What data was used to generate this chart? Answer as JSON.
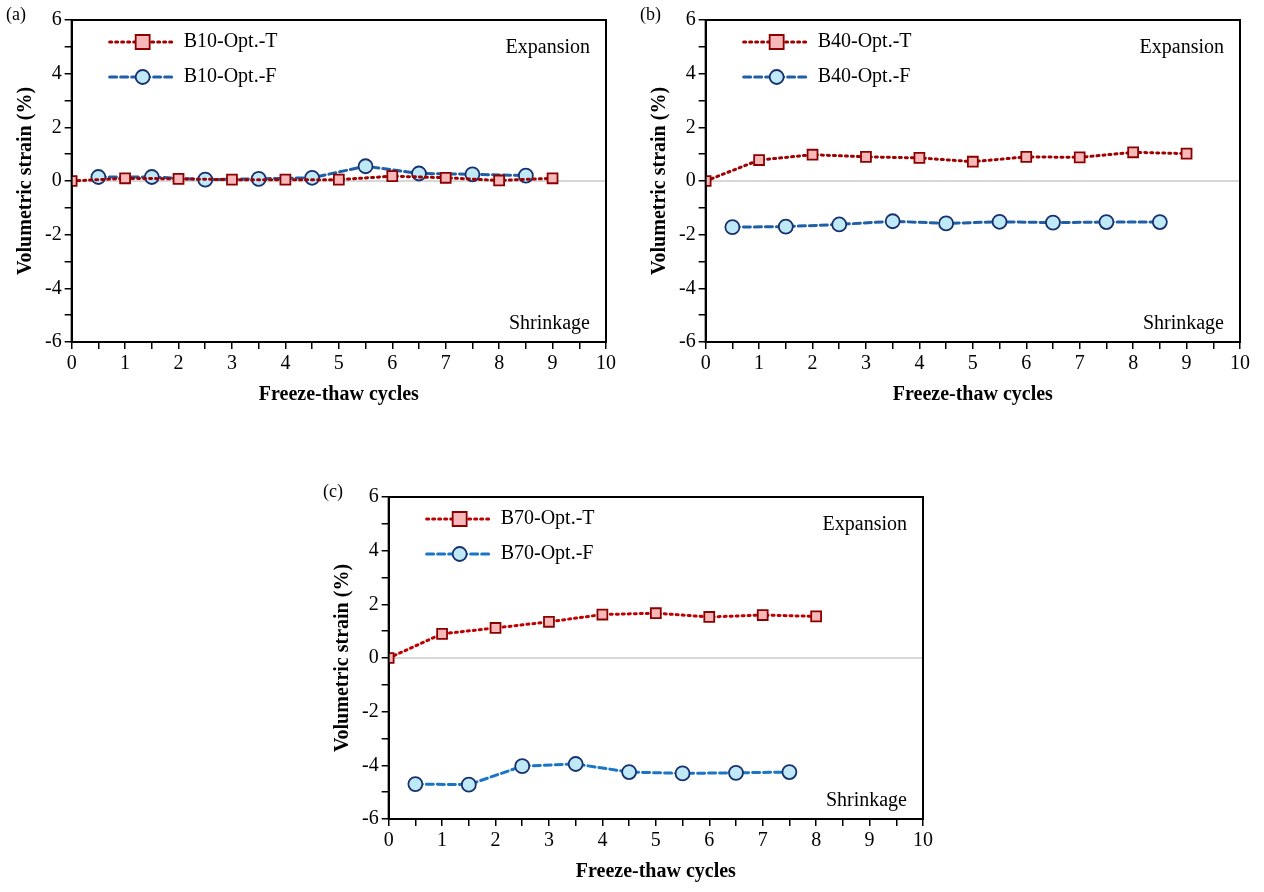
{
  "chart_data": [
    {
      "type": "line",
      "title": "(a)",
      "xlabel": "Freeze-thaw cycles",
      "ylabel": "Volumetric strain (%)",
      "annotations": [
        "Expansion",
        "Shrinkage"
      ],
      "xlim": [
        0,
        10
      ],
      "ylim": [
        -6,
        6
      ],
      "xticks": [
        0,
        {
          "value": 0.5,
          "label": null
        },
        1,
        {
          "value": 1.5,
          "label": null
        },
        2,
        {
          "value": 2.5,
          "label": null
        },
        3,
        {
          "value": 3.5,
          "label": null
        },
        4,
        {
          "value": 4.5,
          "label": null
        },
        5,
        {
          "value": 5.5,
          "label": null
        },
        6,
        {
          "value": 6.5,
          "label": null
        },
        7,
        {
          "value": 7.5,
          "label": null
        },
        8,
        {
          "value": 8.5,
          "label": null
        },
        9,
        {
          "value": 9.5,
          "label": null
        },
        10
      ],
      "yticks": [
        -6,
        {
          "value": -5,
          "label": null
        },
        -4,
        {
          "value": -3,
          "label": null
        },
        -2,
        {
          "value": -1,
          "label": null
        },
        0,
        {
          "value": 1,
          "label": null
        },
        2,
        {
          "value": 3,
          "label": null
        },
        4,
        {
          "value": 5,
          "label": null
        },
        6
      ],
      "ref_lines": [
        {
          "axis": "y",
          "value": 0,
          "color": "#b0b0b0"
        }
      ],
      "grid": false,
      "legend": "top left",
      "series": [
        {
          "name": "B10-Opt.-T",
          "color": "#a00000",
          "marker": "square",
          "line_style": "dotted",
          "x": [
            0,
            1,
            2,
            3,
            4,
            5,
            6,
            7,
            8,
            9
          ],
          "values": [
            0,
            0.1,
            0.08,
            0.05,
            0.05,
            0.05,
            0.18,
            0.12,
            0.02,
            0.1
          ]
        },
        {
          "name": "B10-Opt.-F",
          "color": "#1f5fa8",
          "marker": "circle",
          "line_style": "dashed",
          "x": [
            0.5,
            1.5,
            2.5,
            3.5,
            4.5,
            5.5,
            6.5,
            7.5,
            8.5
          ],
          "values": [
            0.15,
            0.15,
            0.05,
            0.08,
            0.12,
            0.55,
            0.28,
            0.25,
            0.2
          ]
        }
      ]
    },
    {
      "type": "line",
      "title": "(b)",
      "xlabel": "Freeze-thaw cycles",
      "ylabel": "Volumetric strain (%)",
      "annotations": [
        "Expansion",
        "Shrinkage"
      ],
      "xlim": [
        0,
        10
      ],
      "ylim": [
        -6,
        6
      ],
      "xticks": [
        0,
        {
          "value": 0.5,
          "label": null
        },
        1,
        {
          "value": 1.5,
          "label": null
        },
        2,
        {
          "value": 2.5,
          "label": null
        },
        3,
        {
          "value": 3.5,
          "label": null
        },
        4,
        {
          "value": 4.5,
          "label": null
        },
        5,
        {
          "value": 5.5,
          "label": null
        },
        6,
        {
          "value": 6.5,
          "label": null
        },
        7,
        {
          "value": 7.5,
          "label": null
        },
        8,
        {
          "value": 8.5,
          "label": null
        },
        9,
        {
          "value": 9.5,
          "label": null
        },
        10
      ],
      "yticks": [
        -6,
        {
          "value": -5,
          "label": null
        },
        -4,
        {
          "value": -3,
          "label": null
        },
        -2,
        {
          "value": -1,
          "label": null
        },
        0,
        {
          "value": 1,
          "label": null
        },
        2,
        {
          "value": 3,
          "label": null
        },
        4,
        {
          "value": 5,
          "label": null
        },
        6
      ],
      "ref_lines": [
        {
          "axis": "y",
          "value": 0,
          "color": "#b0b0b0"
        }
      ],
      "grid": false,
      "legend": "top left",
      "series": [
        {
          "name": "B40-Opt.-T",
          "color": "#a00000",
          "marker": "square",
          "line_style": "dotted",
          "x": [
            0,
            1,
            2,
            3,
            4,
            5,
            6,
            7,
            8,
            9
          ],
          "values": [
            0,
            0.78,
            0.98,
            0.9,
            0.86,
            0.72,
            0.9,
            0.88,
            1.07,
            1.02
          ]
        },
        {
          "name": "B40-Opt.-F",
          "color": "#1f5fa8",
          "marker": "circle",
          "line_style": "dashed",
          "x": [
            0.5,
            1.5,
            2.5,
            3.5,
            4.5,
            5.5,
            6.5,
            7.5,
            8.5
          ],
          "values": [
            -1.72,
            -1.7,
            -1.62,
            -1.5,
            -1.58,
            -1.52,
            -1.55,
            -1.53,
            -1.53
          ]
        }
      ]
    },
    {
      "type": "line",
      "title": "(c)",
      "xlabel": "Freeze-thaw cycles",
      "ylabel": "Volumetric strain (%)",
      "annotations": [
        "Expansion",
        "Shrinkage"
      ],
      "xlim": [
        0,
        10
      ],
      "ylim": [
        -6,
        6
      ],
      "xticks": [
        0,
        {
          "value": 0.5,
          "label": null
        },
        1,
        {
          "value": 1.5,
          "label": null
        },
        2,
        {
          "value": 2.5,
          "label": null
        },
        3,
        {
          "value": 3.5,
          "label": null
        },
        4,
        {
          "value": 4.5,
          "label": null
        },
        5,
        {
          "value": 5.5,
          "label": null
        },
        6,
        {
          "value": 6.5,
          "label": null
        },
        7,
        {
          "value": 7.5,
          "label": null
        },
        8,
        {
          "value": 8.5,
          "label": null
        },
        9,
        {
          "value": 9.5,
          "label": null
        },
        10
      ],
      "yticks": [
        -6,
        {
          "value": -5,
          "label": null
        },
        -4,
        {
          "value": -3,
          "label": null
        },
        -2,
        {
          "value": -1,
          "label": null
        },
        0,
        {
          "value": 1,
          "label": null
        },
        2,
        {
          "value": 3,
          "label": null
        },
        4,
        {
          "value": 5,
          "label": null
        },
        6
      ],
      "ref_lines": [
        {
          "axis": "y",
          "value": 0,
          "color": "#b0b0b0"
        }
      ],
      "grid": false,
      "legend": "top left",
      "series": [
        {
          "name": "B70-Opt.-T",
          "color": "#c00000",
          "marker": "square",
          "line_style": "dotted",
          "x": [
            0,
            1,
            2,
            3,
            4,
            5,
            6,
            7,
            8
          ],
          "values": [
            0,
            0.9,
            1.12,
            1.35,
            1.62,
            1.67,
            1.53,
            1.6,
            1.55
          ]
        },
        {
          "name": "B70-Opt.-F",
          "color": "#1a75c8",
          "marker": "circle",
          "line_style": "dashed",
          "x": [
            0.5,
            1.5,
            2.5,
            3.5,
            4.5,
            5.5,
            6.5,
            7.5
          ],
          "values": [
            -4.7,
            -4.72,
            -4.03,
            -3.95,
            -4.25,
            -4.3,
            -4.28,
            -4.25
          ]
        }
      ]
    }
  ]
}
